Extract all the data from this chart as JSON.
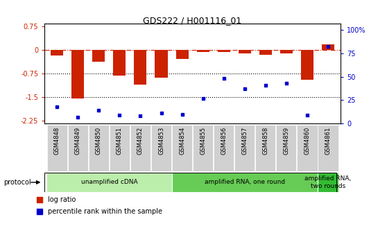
{
  "title": "GDS222 / H001116_01",
  "samples": [
    "GSM4848",
    "GSM4849",
    "GSM4850",
    "GSM4851",
    "GSM4852",
    "GSM4853",
    "GSM4854",
    "GSM4855",
    "GSM4856",
    "GSM4857",
    "GSM4858",
    "GSM4859",
    "GSM4860",
    "GSM4861"
  ],
  "log_ratio": [
    -0.18,
    -1.55,
    -0.38,
    -0.82,
    -1.1,
    -0.88,
    -0.28,
    -0.07,
    -0.06,
    -0.12,
    -0.15,
    -0.12,
    -0.95,
    0.18
  ],
  "percentile": [
    18,
    7,
    14,
    9,
    8,
    11,
    10,
    27,
    48,
    37,
    41,
    43,
    9,
    82
  ],
  "ylim_left": [
    -2.35,
    0.85
  ],
  "ylim_right": [
    0,
    107
  ],
  "yticks_left": [
    0.75,
    0,
    -0.75,
    -1.5,
    -2.25
  ],
  "yticks_right": [
    100,
    75,
    50,
    25,
    0
  ],
  "bar_color": "#cc2200",
  "dot_color": "#0000cc",
  "protocol_groups": [
    {
      "label": "unamplified cDNA",
      "start": 0,
      "end": 5,
      "color": "#bbeeaa"
    },
    {
      "label": "amplified RNA, one round",
      "start": 6,
      "end": 12,
      "color": "#66cc55"
    },
    {
      "label": "amplified RNA,\ntwo rounds",
      "start": 13,
      "end": 13,
      "color": "#33bb33"
    }
  ],
  "legend_bar_label": "log ratio",
  "legend_dot_label": "percentile rank within the sample",
  "protocol_label": "protocol",
  "cell_color": "#d0d0d0",
  "sep_indices": [
    5.5,
    12.5
  ]
}
